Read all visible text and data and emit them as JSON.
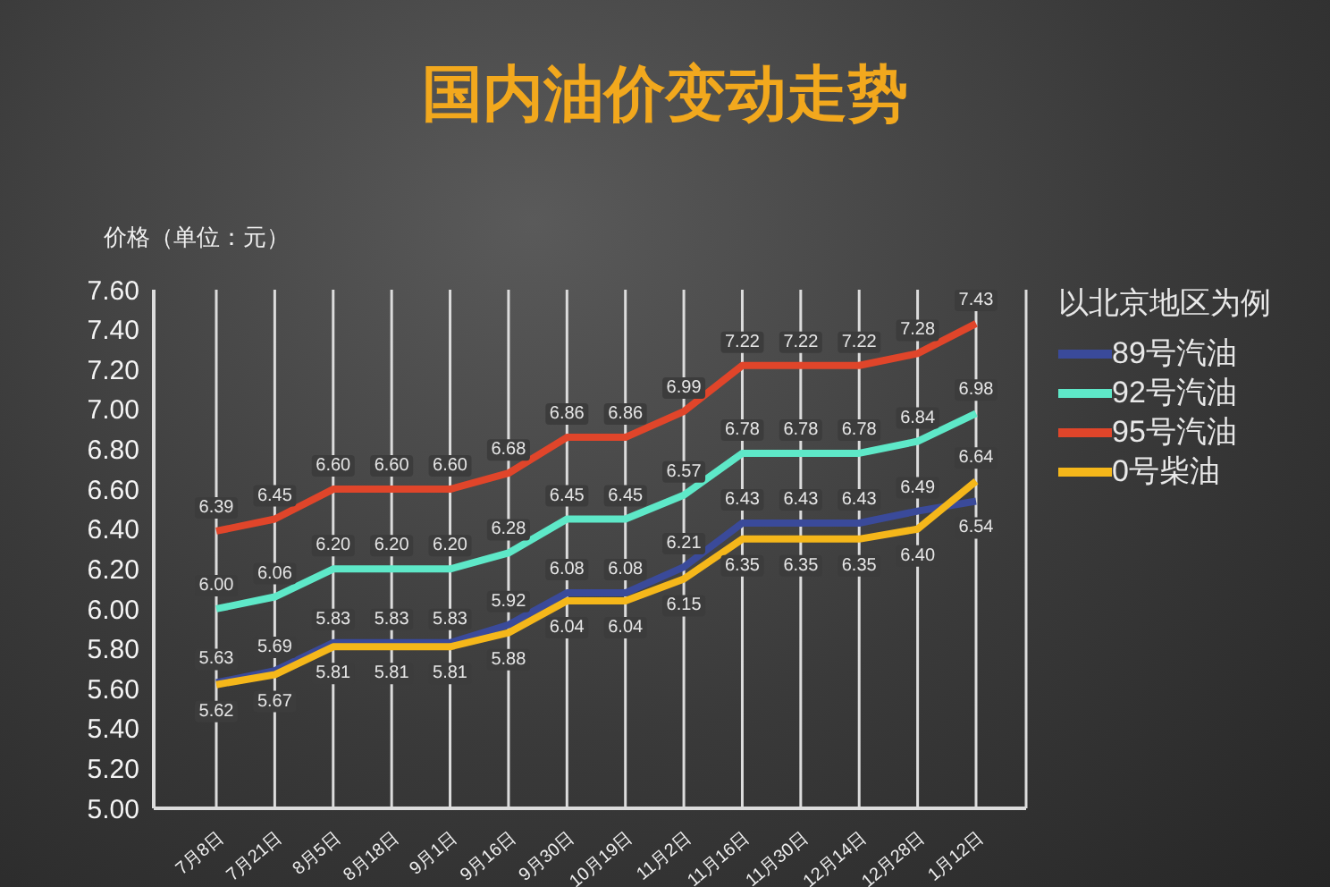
{
  "chart_data": {
    "type": "line",
    "title": "国内油价变动走势",
    "ylabel": "价格（单位：元）",
    "legend_title": "以北京地区为例",
    "categories": [
      "7月8日",
      "7月21日",
      "8月5日",
      "8月18日",
      "9月1日",
      "9月16日",
      "9月30日",
      "10月19日",
      "11月2日",
      "11月16日",
      "11月30日",
      "12月14日",
      "12月28日",
      "1月12日"
    ],
    "series": [
      {
        "name": "89号汽油",
        "color": "#3a4a9a",
        "values": [
          5.63,
          5.69,
          5.83,
          5.83,
          5.83,
          5.92,
          6.08,
          6.08,
          6.21,
          6.43,
          6.43,
          6.43,
          6.49,
          6.54
        ],
        "value_labels": [
          "5.63",
          "5.69",
          "5.83",
          "5.83",
          "5.83",
          "5.92",
          "6.08",
          "6.08",
          "6.21",
          "6.43",
          "6.43",
          "6.43",
          "6.49",
          "6.54"
        ]
      },
      {
        "name": "92号汽油",
        "color": "#5ee8c8",
        "values": [
          6.0,
          6.06,
          6.2,
          6.2,
          6.2,
          6.28,
          6.45,
          6.45,
          6.57,
          6.78,
          6.78,
          6.78,
          6.84,
          6.98
        ],
        "value_labels": [
          "6.00",
          "6.06",
          "6.20",
          "6.20",
          "6.20",
          "6.28",
          "6.45",
          "6.45",
          "6.57",
          "6.78",
          "6.78",
          "6.78",
          "6.84",
          "6.98"
        ]
      },
      {
        "name": "95号汽油",
        "color": "#e0452a",
        "values": [
          6.39,
          6.45,
          6.6,
          6.6,
          6.6,
          6.68,
          6.86,
          6.86,
          6.99,
          7.22,
          7.22,
          7.22,
          7.28,
          7.43
        ],
        "value_labels": [
          "6.39",
          "6.45",
          "6.60",
          "6.60",
          "6.60",
          "6.68",
          "6.86",
          "6.86",
          "6.99",
          "7.22",
          "7.22",
          "7.22",
          "7.28",
          "7.43"
        ]
      },
      {
        "name": "0号柴油",
        "color": "#f5b71a",
        "values": [
          5.62,
          5.67,
          5.81,
          5.81,
          5.81,
          5.88,
          6.04,
          6.04,
          6.15,
          6.35,
          6.35,
          6.35,
          6.4,
          6.64
        ],
        "value_labels": [
          "5.62",
          "5.67",
          "5.81",
          "5.81",
          "5.81",
          "5.88",
          "6.04",
          "6.04",
          "6.15",
          "6.35",
          "6.35",
          "6.35",
          "6.40",
          "6.64"
        ]
      }
    ],
    "ylim": [
      5.0,
      7.6
    ],
    "yticks": [
      {
        "value": 5.0,
        "label": "5.00"
      },
      {
        "value": 5.2,
        "label": "5.20"
      },
      {
        "value": 5.4,
        "label": "5.40"
      },
      {
        "value": 5.6,
        "label": "5.60"
      },
      {
        "value": 5.8,
        "label": "5.80"
      },
      {
        "value": 6.0,
        "label": "6.00"
      },
      {
        "value": 6.2,
        "label": "6.20"
      },
      {
        "value": 6.4,
        "label": "6.40"
      },
      {
        "value": 6.6,
        "label": "6.60"
      },
      {
        "value": 6.8,
        "label": "6.80"
      },
      {
        "value": 7.0,
        "label": "7.00"
      },
      {
        "value": 7.2,
        "label": "7.20"
      },
      {
        "value": 7.4,
        "label": "7.40"
      },
      {
        "value": 7.6,
        "label": "7.60"
      }
    ],
    "grid": "x",
    "legend": "right",
    "marker": "none",
    "line_style": "solid"
  }
}
